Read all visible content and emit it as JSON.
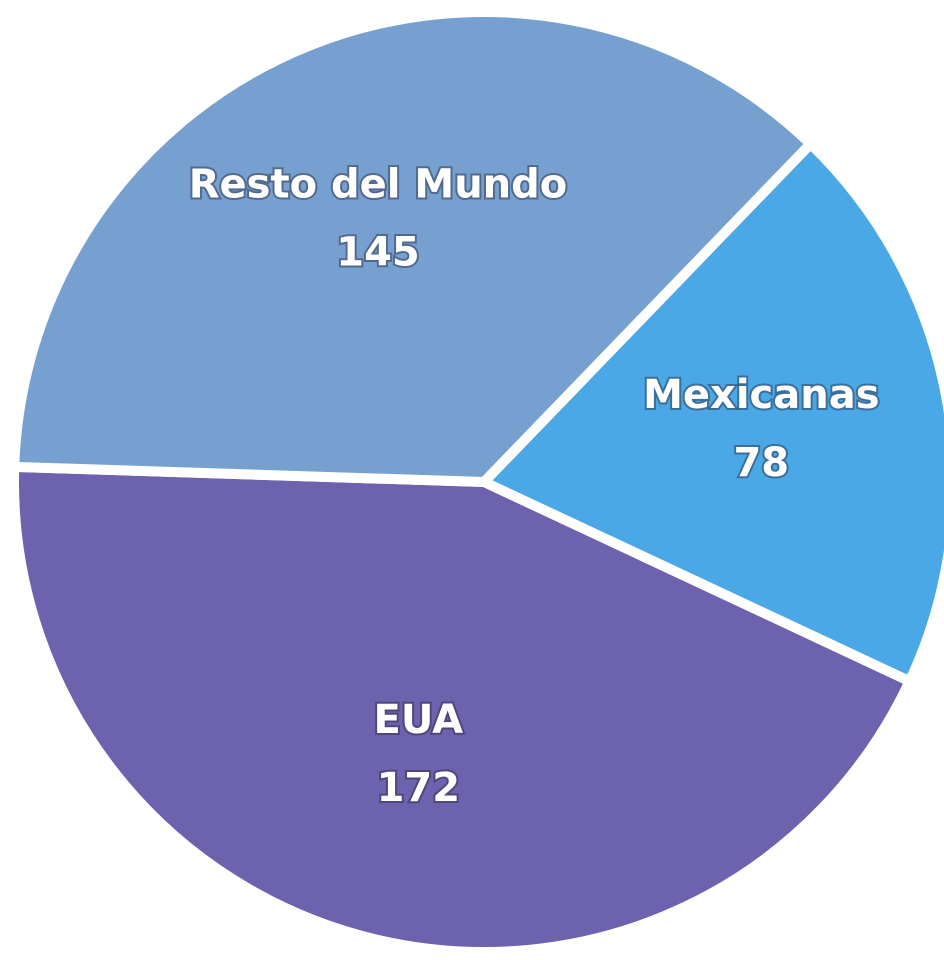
{
  "chart_data": {
    "type": "pie",
    "categories": [
      "Mexicanas",
      "EUA",
      "Resto del Mundo"
    ],
    "values": [
      78,
      172,
      145
    ],
    "colors": [
      "#4ba8e6",
      "#6c62ae",
      "#76a0d0"
    ]
  }
}
